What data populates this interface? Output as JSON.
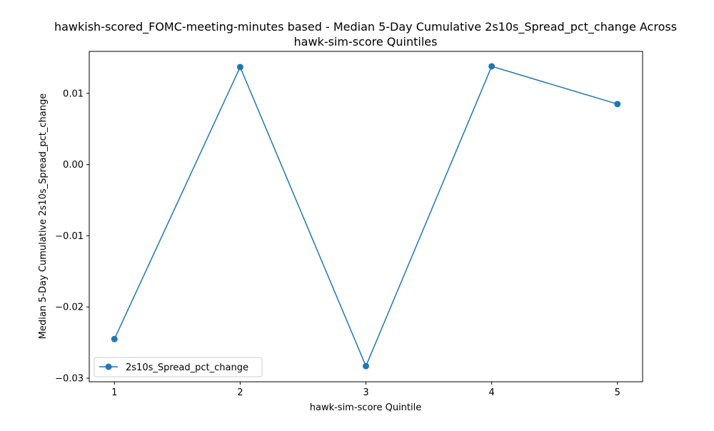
{
  "chart_data": {
    "type": "line",
    "title_line1": "hawkish-scored_FOMC-meeting-minutes based - Median 5-Day Cumulative 2s10s_Spread_pct_change Across",
    "title_line2": "hawk-sim-score Quintiles",
    "xlabel": "hawk-sim-score Quintile",
    "ylabel": "Median 5-Day Cumulative 2s10s_Spread_pct_change",
    "x": [
      1,
      2,
      3,
      4,
      5
    ],
    "x_tick_labels": [
      "1",
      "2",
      "3",
      "4",
      "5"
    ],
    "y_ticks": [
      -0.03,
      -0.02,
      -0.01,
      0.0,
      0.01
    ],
    "y_tick_labels": [
      "−0.03",
      "−0.02",
      "−0.01",
      "0.00",
      "0.01"
    ],
    "xlim": [
      0.8,
      5.2
    ],
    "ylim": [
      -0.0305,
      0.0159
    ],
    "series": [
      {
        "name": "2s10s_Spread_pct_change",
        "values": [
          -0.0245,
          0.0137,
          -0.0283,
          0.0138,
          0.0085
        ],
        "color": "#1f77b4",
        "marker": "circle"
      }
    ],
    "legend": {
      "position": "lower-left"
    },
    "grid": false
  }
}
